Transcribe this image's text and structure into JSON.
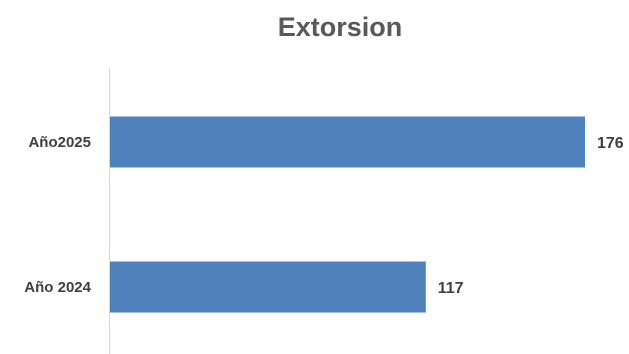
{
  "chart_data": {
    "type": "bar",
    "orientation": "horizontal",
    "title": "Extorsion",
    "categories": [
      "Año2025",
      "Año 2024"
    ],
    "values": [
      176,
      117
    ],
    "data_labels": [
      "176",
      "117"
    ],
    "xlim": [
      0,
      176
    ],
    "xlabel": "",
    "ylabel": "",
    "grid": false,
    "legend": "none",
    "bar_color": "#4F81BD",
    "axis_color": "#D9D9D9"
  }
}
